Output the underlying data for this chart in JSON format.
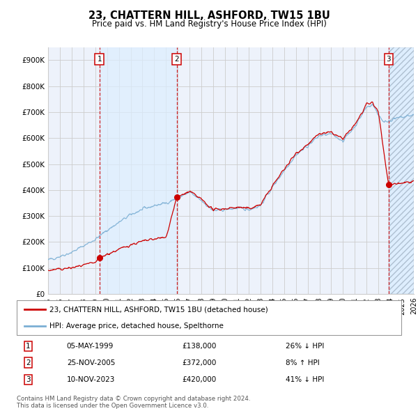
{
  "title": "23, CHATTERN HILL, ASHFORD, TW15 1BU",
  "subtitle": "Price paid vs. HM Land Registry's House Price Index (HPI)",
  "hpi_label": "HPI: Average price, detached house, Spelthorne",
  "property_label": "23, CHATTERN HILL, ASHFORD, TW15 1BU (detached house)",
  "legend_note": "Contains HM Land Registry data © Crown copyright and database right 2024.\nThis data is licensed under the Open Government Licence v3.0.",
  "sale_events": [
    {
      "num": 1,
      "date": "05-MAY-1999",
      "price": 138000,
      "hpi_diff": "26% ↓ HPI",
      "x": 1999.35
    },
    {
      "num": 2,
      "date": "25-NOV-2005",
      "price": 372000,
      "hpi_diff": "8% ↑ HPI",
      "x": 2005.9
    },
    {
      "num": 3,
      "date": "10-NOV-2023",
      "price": 420000,
      "hpi_diff": "41% ↓ HPI",
      "x": 2023.86
    }
  ],
  "ylim": [
    0,
    950000
  ],
  "xlim_min": 1995,
  "xlim_max": 2026,
  "yticks": [
    0,
    100000,
    200000,
    300000,
    400000,
    500000,
    600000,
    700000,
    800000,
    900000
  ],
  "ytick_labels": [
    "£0",
    "£100K",
    "£200K",
    "£300K",
    "£400K",
    "£500K",
    "£600K",
    "£700K",
    "£800K",
    "£900K"
  ],
  "xticks": [
    1995,
    1996,
    1997,
    1998,
    1999,
    2000,
    2001,
    2002,
    2003,
    2004,
    2005,
    2006,
    2007,
    2008,
    2009,
    2010,
    2011,
    2012,
    2013,
    2014,
    2015,
    2016,
    2017,
    2018,
    2019,
    2020,
    2021,
    2022,
    2023,
    2024,
    2025,
    2026
  ],
  "property_color": "#cc0000",
  "hpi_color": "#7bafd4",
  "sale_marker_color": "#cc0000",
  "hatched_region_color": "#ddeeff",
  "shaded_region_color": "#ddeeff",
  "grid_color": "#cccccc",
  "background_color": "#edf2fb"
}
